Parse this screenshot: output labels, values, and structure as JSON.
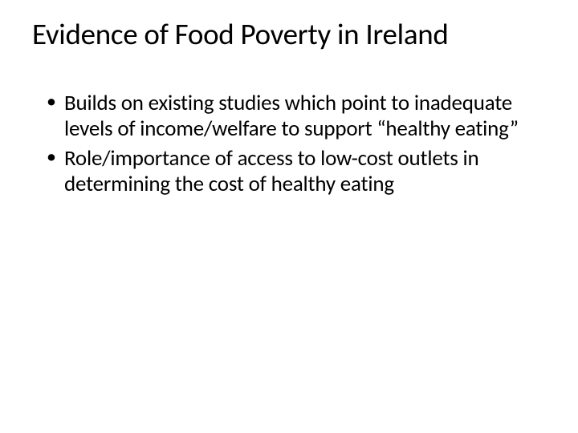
{
  "slide": {
    "title": "Evidence of Food Poverty in Ireland",
    "bullets": [
      "Builds on existing studies which point to inadequate levels of income/welfare to support “healthy eating”",
      "Role/importance of access to low-cost outlets in determining the cost of healthy eating"
    ],
    "title_fontsize": 37,
    "body_fontsize": 27,
    "text_color": "#000000",
    "background_color": "#ffffff"
  }
}
